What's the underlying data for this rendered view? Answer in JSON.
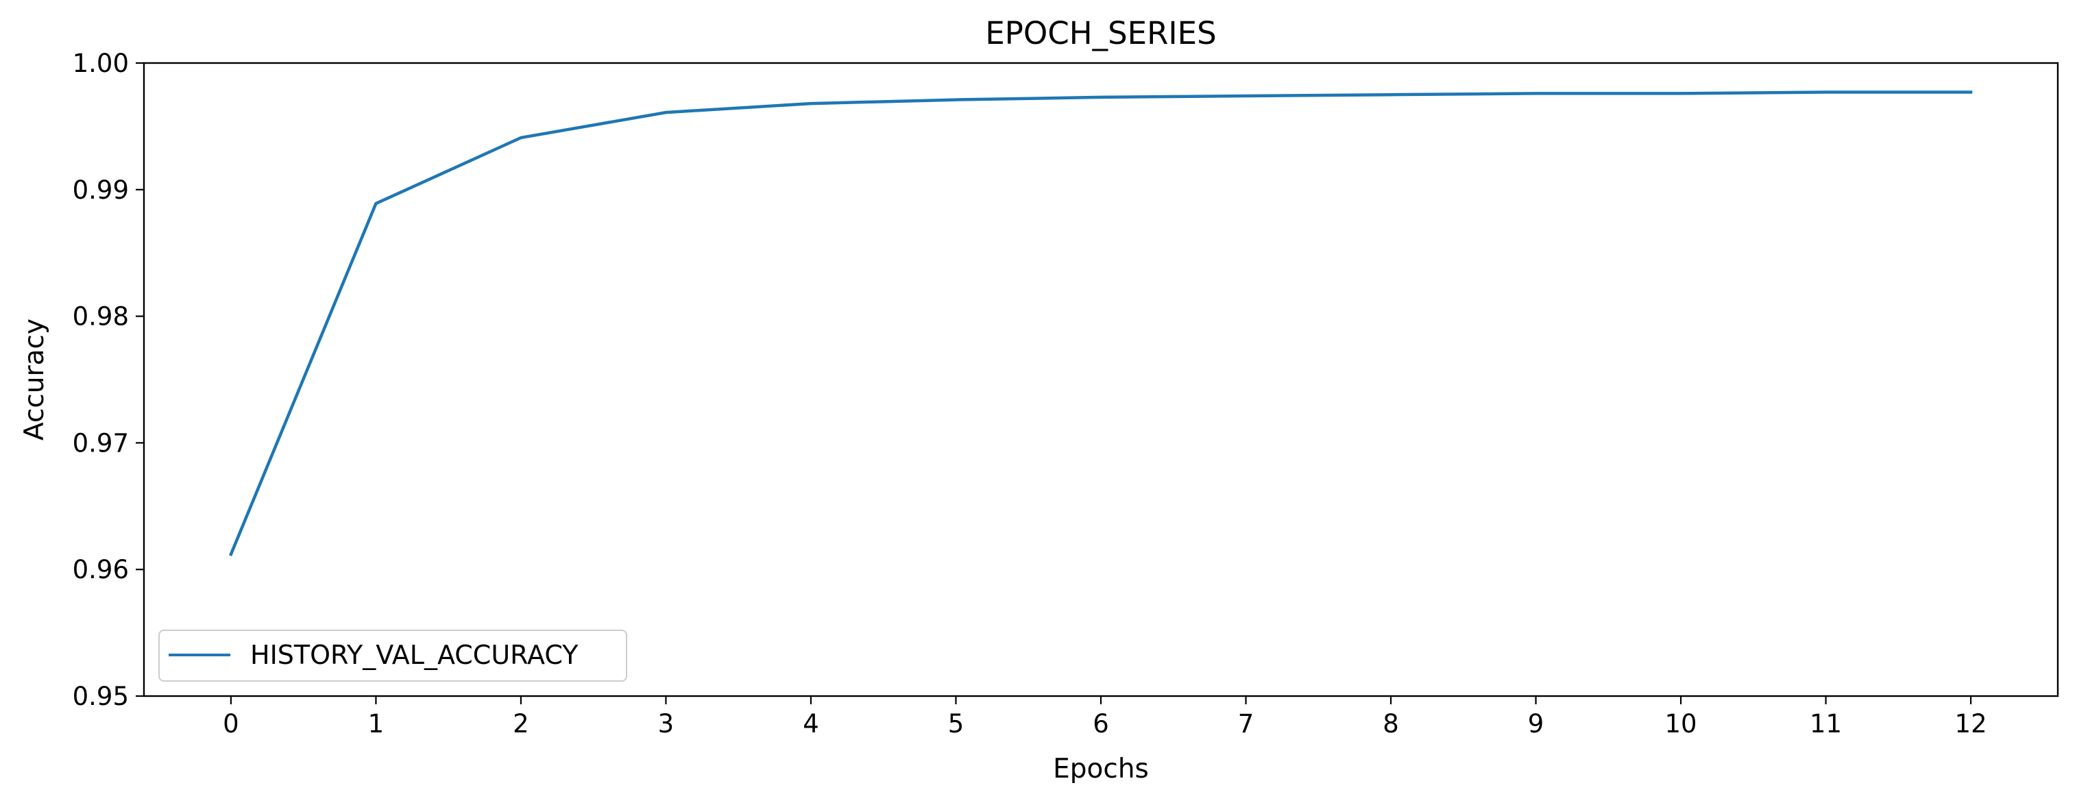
{
  "chart_data": {
    "type": "line",
    "title": "EPOCH_SERIES",
    "xlabel": "Epochs",
    "ylabel": "Accuracy",
    "x": [
      0,
      1,
      2,
      3,
      4,
      5,
      6,
      7,
      8,
      9,
      10,
      11,
      12
    ],
    "xticks": [
      "0",
      "1",
      "2",
      "3",
      "4",
      "5",
      "6",
      "7",
      "8",
      "9",
      "10",
      "11",
      "12"
    ],
    "yticks": [
      "0.95",
      "0.96",
      "0.97",
      "0.98",
      "0.99",
      "1.00"
    ],
    "xlim": [
      -0.6,
      12.6
    ],
    "ylim": [
      0.95,
      1.0
    ],
    "grid": false,
    "legend_position": "lower-left",
    "series": [
      {
        "name": "HISTORY_VAL_ACCURACY",
        "color": "#1f77b4",
        "values": [
          0.9612,
          0.9889,
          0.9941,
          0.9961,
          0.9968,
          0.9971,
          0.9973,
          0.9974,
          0.9975,
          0.9976,
          0.9976,
          0.9977,
          0.9977
        ]
      }
    ]
  }
}
